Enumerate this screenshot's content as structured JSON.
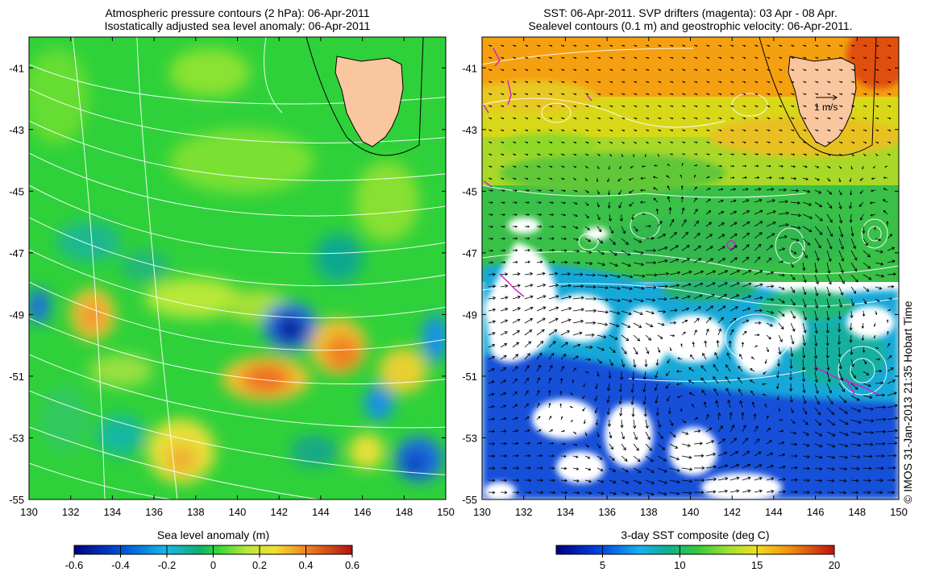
{
  "left_panel": {
    "title_line1": "Atmospheric pressure contours (2 hPa): 06-Apr-2011",
    "title_line2": "Isostatically adjusted sea level anomaly: 06-Apr-2011",
    "colorbar": {
      "label": "Sea level anomaly (m)",
      "ticks": [
        "-0.6",
        "-0.4",
        "-0.2",
        "0",
        "0.2",
        "0.4",
        "0.6"
      ],
      "range": [
        -0.6,
        0.6
      ]
    }
  },
  "right_panel": {
    "title_line1": "SST: 06-Apr-2011. SVP drifters (magenta): 03 Apr - 08 Apr.",
    "title_line2": "Sealevel contours (0.1 m) and geostrophic velocity: 06-Apr-2011.",
    "velocity_key": "1 m/s",
    "colorbar": {
      "label": "3-day SST composite (deg C)",
      "ticks": [
        "5",
        "10",
        "15",
        "20"
      ],
      "range": [
        2,
        20
      ]
    }
  },
  "axes": {
    "lon_ticks": [
      "130",
      "132",
      "134",
      "136",
      "138",
      "140",
      "142",
      "144",
      "146",
      "148",
      "150"
    ],
    "lat_ticks": [
      "-41",
      "-43",
      "-45",
      "-47",
      "-49",
      "-51",
      "-53",
      "-55"
    ],
    "lon_range": [
      130,
      150
    ],
    "lat_range": [
      -55,
      -40
    ]
  },
  "credit": "© IMOS 31-Jan-2013 21:35 Hobart Time",
  "colors": {
    "land": "#f9c6a0",
    "sla_background": "#2fd13a",
    "sst_cold": "#1a3fd6",
    "sst_warm": "#f5a010",
    "drifter": "#d020d0"
  }
}
